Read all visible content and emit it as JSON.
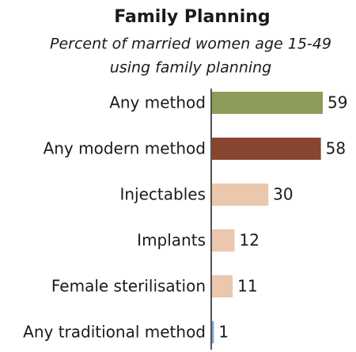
{
  "chart_data": {
    "type": "hbar",
    "title": "Family Planning",
    "subtitle": [
      "Percent of married women age 15-49",
      "using family planning"
    ],
    "categories": [
      "Any method",
      "Any modern method",
      "Injectables",
      "Implants",
      "Female sterilisation",
      "Any traditional method"
    ],
    "values": [
      59,
      58,
      30,
      12,
      11,
      1
    ],
    "colors": [
      "#8c9c5a",
      "#884530",
      "#ebc7ae",
      "#ebc7ae",
      "#ebc7ae",
      "#7ba7d6"
    ]
  }
}
